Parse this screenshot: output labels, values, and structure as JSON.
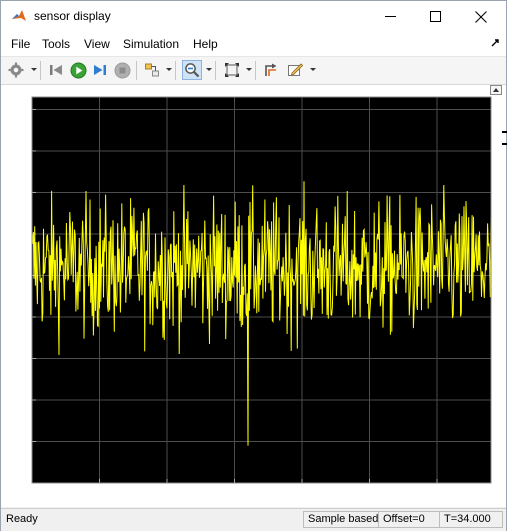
{
  "window": {
    "title": "sensor display"
  },
  "menu": [
    "File",
    "Tools",
    "View",
    "Simulation",
    "Help"
  ],
  "toolbar": {
    "buttons": [
      {
        "name": "settings-icon",
        "dropdown": true
      },
      {
        "name": "step-back-icon"
      },
      {
        "name": "run-icon"
      },
      {
        "name": "step-forward-icon"
      },
      {
        "name": "stop-icon"
      },
      {
        "name": "highlight-block-icon",
        "dropdown": true
      },
      {
        "name": "zoom-in-icon",
        "dropdown": true,
        "active": true
      },
      {
        "name": "zoom-to-fit-icon",
        "dropdown": true
      },
      {
        "name": "signal-select-icon"
      },
      {
        "name": "style-icon",
        "dropdown": true
      }
    ]
  },
  "chart_data": {
    "type": "line",
    "xlim": [
      0,
      34
    ],
    "ylim": [
      1190,
      1283
    ],
    "x_ticks": [
      0,
      5,
      10,
      15,
      20,
      25,
      30
    ],
    "y_ticks": [
      1190,
      1200,
      1210,
      1220,
      1230,
      1240,
      1250,
      1260,
      1270,
      1280
    ],
    "grid": true,
    "background_color": "#000000",
    "axes_color": "#ffffff",
    "grid_color": "#4d4d4d",
    "line_color": "#ffff00",
    "series": [
      {
        "mean": 1242,
        "spread": 8,
        "x_start": 0,
        "x_end": 34,
        "samples": 680,
        "min": 1199,
        "min_at": 16,
        "max": 1272
      }
    ]
  },
  "status": {
    "ready": "Ready",
    "mode": "Sample based",
    "offset": "Offset=0",
    "time": "T=34.000"
  }
}
